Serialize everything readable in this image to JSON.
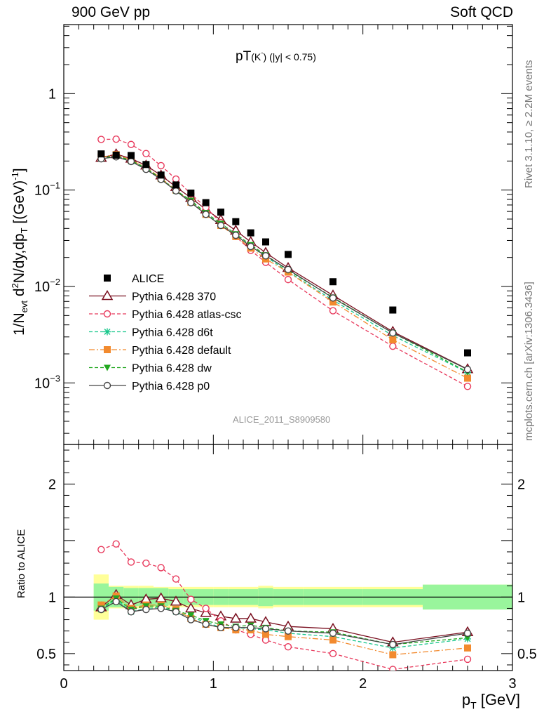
{
  "header": {
    "left": "900 GeV pp",
    "right": "Soft QCD"
  },
  "side_text": {
    "rivet": "Rivet 3.1.10, ≥ 2.2M events",
    "mcplots": "mcplots.cern.ch [arXiv:1306.3436]"
  },
  "analysis_label": "ALICE_2011_S8909580",
  "chart_data": [
    {
      "type": "scatter",
      "title": "pT(K⁻) (|y| < 0.75)",
      "title_main": "pT",
      "title_particle": "(K",
      "title_sup": "-",
      "title_rest": ") (|y| < 0.75)",
      "ylabel": "1/N_evt d²N/dy,dp_T [(GeV)⁻¹]",
      "ylabel_parts": {
        "a": "1/N",
        "b": "evt",
        "c": " d",
        "d": "2",
        "e": "N/dy,dp",
        "f": "T",
        "g": " [(GeV)",
        "h": "-1",
        "i": "]"
      },
      "xlabel": "p_T [GeV]",
      "xlim": [
        0,
        3
      ],
      "ylim": [
        0.00023,
        5.2
      ],
      "log_y": true,
      "y_ticks": [
        {
          "value": 1,
          "label": "1"
        },
        {
          "value": 0.1,
          "label": "10⁻¹",
          "base": "10",
          "exp": "−1"
        },
        {
          "value": 0.01,
          "label": "10⁻²",
          "base": "10",
          "exp": "−2"
        },
        {
          "value": 0.001,
          "label": "10⁻³",
          "base": "10",
          "exp": "−3"
        }
      ],
      "x": [
        0.25,
        0.35,
        0.45,
        0.55,
        0.65,
        0.75,
        0.85,
        0.95,
        1.05,
        1.15,
        1.25,
        1.35,
        1.5,
        1.8,
        2.2,
        2.7
      ],
      "series": [
        {
          "name": "ALICE",
          "color": "#000000",
          "marker": "square-filled",
          "line": "none",
          "values": [
            0.237,
            0.23,
            0.228,
            0.184,
            0.143,
            0.113,
            0.093,
            0.074,
            0.059,
            0.047,
            0.036,
            0.029,
            0.0215,
            0.0112,
            0.0057,
            0.00205
          ]
        },
        {
          "name": "Pythia 6.428 370",
          "color": "#7a1020",
          "marker": "triangle-open",
          "line": "solid",
          "values": [
            0.216,
            0.236,
            0.212,
            0.18,
            0.142,
            0.108,
            0.083,
            0.063,
            0.049,
            0.038,
            0.029,
            0.0224,
            0.0156,
            0.0081,
            0.0034,
            0.00139
          ]
        },
        {
          "name": "Pythia 6.428 atlas-csc",
          "color": "#e8395c",
          "marker": "circle-open",
          "line": "dashed",
          "values": [
            0.335,
            0.337,
            0.297,
            0.239,
            0.179,
            0.13,
            0.091,
            0.066,
            0.046,
            0.033,
            0.0237,
            0.0178,
            0.0118,
            0.0056,
            0.0024,
            0.00092
          ]
        },
        {
          "name": "Pythia 6.428 d6t",
          "color": "#19c78c",
          "marker": "star",
          "line": "dashed",
          "values": [
            0.212,
            0.225,
            0.198,
            0.166,
            0.13,
            0.098,
            0.076,
            0.057,
            0.043,
            0.034,
            0.026,
            0.0205,
            0.0142,
            0.0072,
            0.0031,
            0.00128
          ]
        },
        {
          "name": "Pythia 6.428 default",
          "color": "#f28a2e",
          "marker": "square-filled",
          "line": "dashdot",
          "values": [
            0.22,
            0.233,
            0.205,
            0.171,
            0.133,
            0.1,
            0.075,
            0.056,
            0.043,
            0.033,
            0.025,
            0.0193,
            0.0141,
            0.0069,
            0.0028,
            0.00112
          ]
        },
        {
          "name": "Pythia 6.428 dw",
          "color": "#22a820",
          "marker": "triangle-down-filled",
          "line": "dashed",
          "values": [
            0.213,
            0.228,
            0.202,
            0.169,
            0.131,
            0.099,
            0.078,
            0.058,
            0.045,
            0.035,
            0.027,
            0.0212,
            0.0147,
            0.0077,
            0.0033,
            0.0013
          ]
        },
        {
          "name": "Pythia 6.428 p0",
          "color": "#444444",
          "marker": "circle-open",
          "line": "solid",
          "values": [
            0.211,
            0.221,
            0.198,
            0.164,
            0.129,
            0.098,
            0.074,
            0.056,
            0.043,
            0.034,
            0.026,
            0.0208,
            0.015,
            0.0076,
            0.0033,
            0.00138
          ]
        }
      ]
    },
    {
      "type": "line",
      "ylabel": "Ratio to ALICE",
      "xlabel": "p_T [GeV]",
      "xlim": [
        0,
        3
      ],
      "ylim": [
        0.35,
        2.35
      ],
      "y_ticks": [
        {
          "value": 0.5,
          "label": "0.5"
        },
        {
          "value": 1,
          "label": "1"
        },
        {
          "value": 2,
          "label": "2"
        }
      ],
      "x_ticks": [
        {
          "value": 0,
          "label": "0"
        },
        {
          "value": 1,
          "label": "1"
        },
        {
          "value": 2,
          "label": "2"
        },
        {
          "value": 3,
          "label": "3"
        }
      ],
      "reference_line": 1,
      "bin_edges": [
        0.2,
        0.3,
        0.4,
        0.5,
        0.6,
        0.7,
        0.8,
        0.9,
        1.0,
        1.1,
        1.2,
        1.3,
        1.4,
        1.6,
        2.0,
        2.4,
        3.0
      ],
      "band_inner": [
        0.12,
        0.09,
        0.08,
        0.08,
        0.08,
        0.07,
        0.07,
        0.07,
        0.07,
        0.07,
        0.07,
        0.08,
        0.07,
        0.07,
        0.07,
        0.11
      ],
      "band_outer": [
        0.2,
        0.1,
        0.1,
        0.1,
        0.09,
        0.09,
        0.09,
        0.09,
        0.09,
        0.09,
        0.09,
        0.1,
        0.09,
        0.09,
        0.09,
        0.11
      ],
      "band_colors": {
        "inner": "#99f59c",
        "outer": "#ffff99"
      },
      "series": [
        {
          "name": "Pythia 6.428 370",
          "values": [
            0.91,
            1.02,
            0.93,
            0.98,
            0.99,
            0.96,
            0.9,
            0.86,
            0.83,
            0.81,
            0.81,
            0.78,
            0.74,
            0.72,
            0.6,
            0.69
          ]
        },
        {
          "name": "Pythia 6.428 atlas-csc",
          "values": [
            1.42,
            1.47,
            1.31,
            1.3,
            1.26,
            1.16,
            0.98,
            0.9,
            0.79,
            0.71,
            0.67,
            0.62,
            0.56,
            0.5,
            0.36,
            0.45
          ]
        },
        {
          "name": "Pythia 6.428 d6t",
          "values": [
            0.89,
            0.98,
            0.87,
            0.9,
            0.91,
            0.87,
            0.82,
            0.78,
            0.73,
            0.73,
            0.72,
            0.71,
            0.68,
            0.65,
            0.55,
            0.63
          ]
        },
        {
          "name": "Pythia 6.428 default",
          "values": [
            0.93,
            1.01,
            0.9,
            0.93,
            0.93,
            0.89,
            0.81,
            0.76,
            0.73,
            0.71,
            0.71,
            0.67,
            0.65,
            0.62,
            0.49,
            0.55
          ]
        },
        {
          "name": "Pythia 6.428 dw",
          "values": [
            0.9,
            0.99,
            0.89,
            0.92,
            0.92,
            0.88,
            0.84,
            0.79,
            0.76,
            0.74,
            0.75,
            0.73,
            0.7,
            0.69,
            0.58,
            0.64
          ]
        },
        {
          "name": "Pythia 6.428 p0",
          "values": [
            0.89,
            0.96,
            0.87,
            0.89,
            0.9,
            0.87,
            0.8,
            0.76,
            0.73,
            0.73,
            0.73,
            0.72,
            0.7,
            0.68,
            0.58,
            0.68
          ]
        }
      ]
    }
  ]
}
